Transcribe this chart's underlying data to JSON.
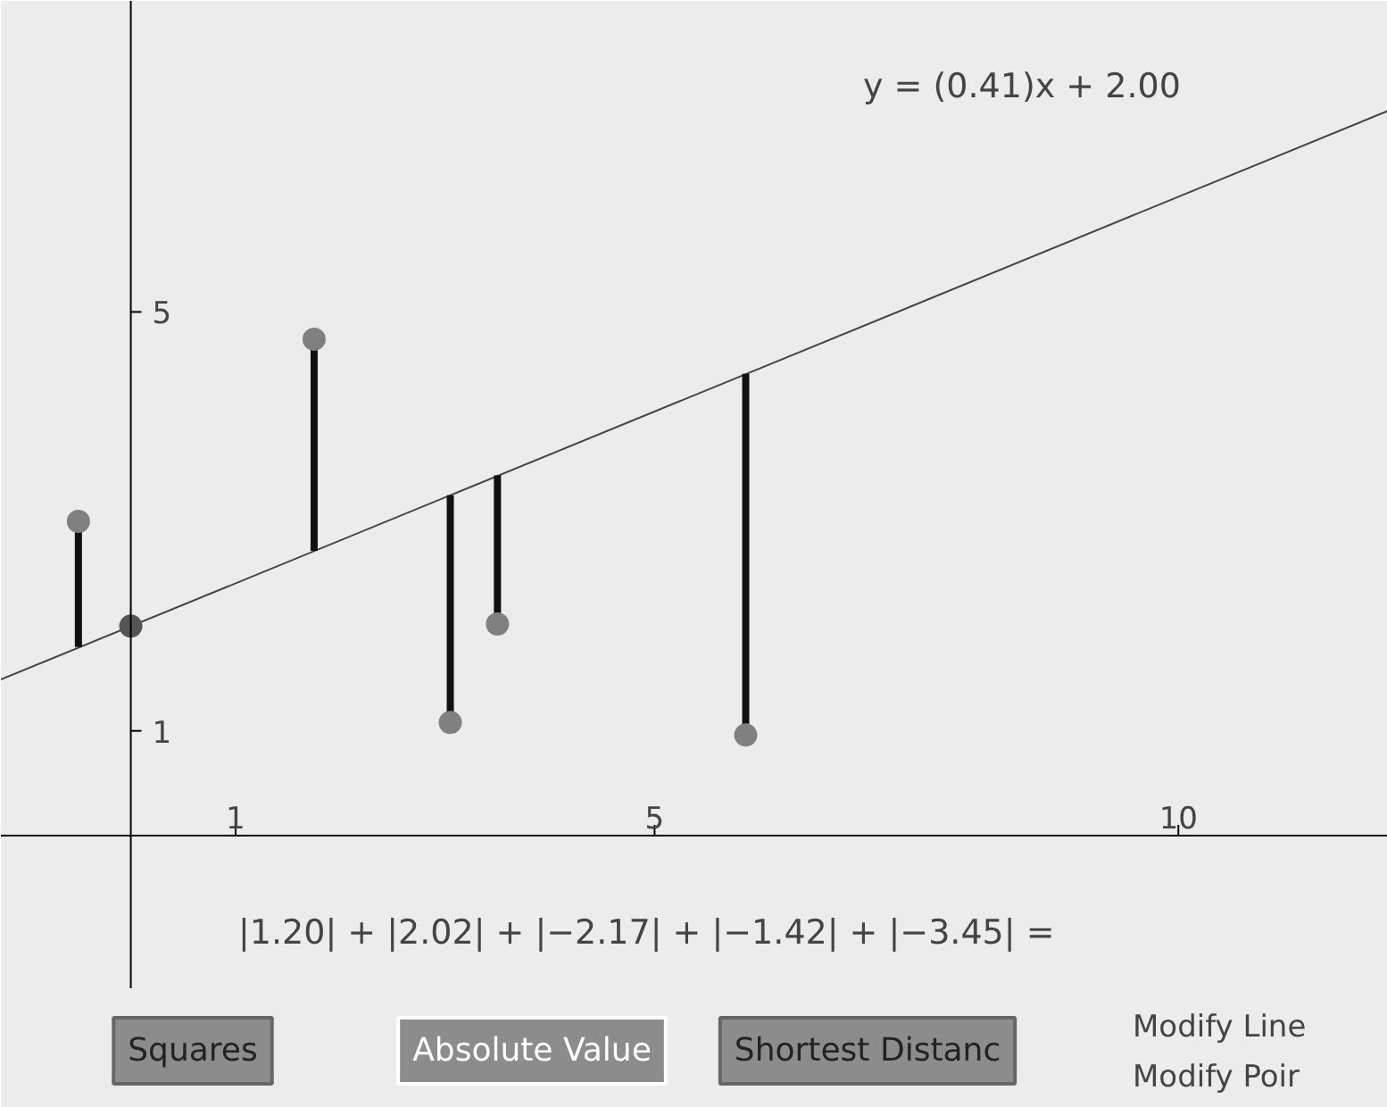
{
  "chart_data": {
    "type": "scatter",
    "xlim": [
      -1.24,
      12.0
    ],
    "ylim": [
      -2.6,
      7.97
    ],
    "xticks": [
      1,
      5,
      10
    ],
    "yticks": [
      1,
      5
    ],
    "grid": false,
    "marker": "circle",
    "series": [
      {
        "type": "line",
        "marker": "none",
        "color": "#444444",
        "x": [
          -1.24,
          12.0
        ],
        "values": [
          1.49,
          6.92
        ]
      },
      {
        "color": "#808080",
        "x": [
          -0.5,
          1.75,
          3.05,
          3.5,
          5.87
        ],
        "values": [
          3.0,
          4.74,
          1.08,
          2.02,
          0.96
        ],
        "errors": [
          [
            1.8,
            3.0
          ],
          [
            2.72,
            4.74
          ],
          [
            1.08,
            3.25
          ],
          [
            2.02,
            3.44
          ],
          [
            0.96,
            4.41
          ]
        ]
      },
      {
        "color": "#555555",
        "x": [
          0
        ],
        "values": [
          2.0
        ]
      }
    ],
    "annotations": [
      "y = (0.41)x + 2.00",
      "|1.20| + |2.02| + |−2.17| + |−1.42| + |−3.45| =",
      "Squares",
      "Absolute Value",
      "Shortest Distanc",
      "Modify Line",
      "Modify Poir"
    ]
  }
}
